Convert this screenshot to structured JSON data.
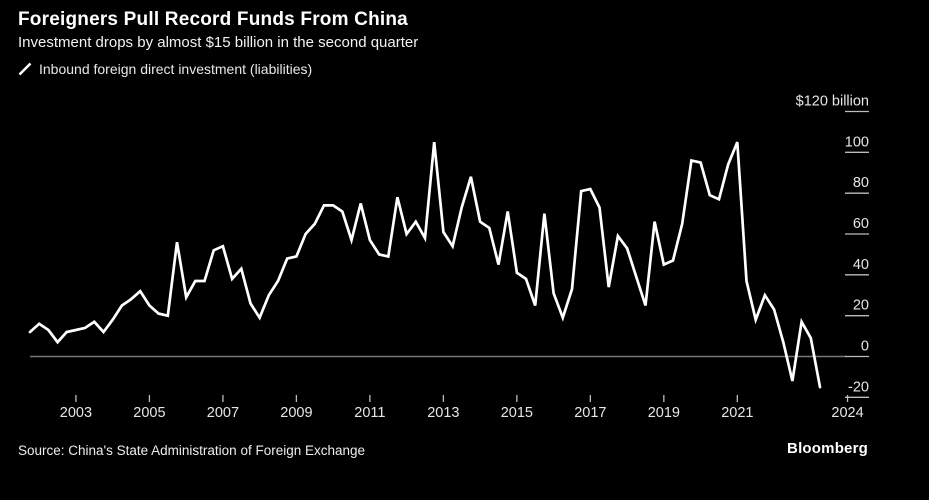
{
  "header": {
    "title": "Foreigners Pull Record Funds From China",
    "subtitle": "Investment drops by almost $15 billion in the second quarter"
  },
  "legend": {
    "icon": "line-slash-icon",
    "label": "Inbound foreign direct investment (liabilities)"
  },
  "footer": {
    "source": "Source: China's State Administration of Foreign Exchange",
    "brand": "Bloomberg"
  },
  "colors": {
    "background": "#000000",
    "series_line": "#ffffff",
    "zero_line": "#767676",
    "tick_mark": "#bdbdbd",
    "tick_label": "#e6e6e6"
  },
  "chart_data": {
    "type": "line",
    "series_name": "Inbound foreign direct investment (liabilities)",
    "unit": "USD billion",
    "frequency": "quarterly",
    "period_start": "2002 Q4",
    "period_end": "2024 Q2",
    "values": [
      12,
      16,
      13,
      7,
      12,
      13,
      14,
      17,
      12,
      18,
      25,
      28,
      32,
      25,
      21,
      20,
      56,
      29,
      37,
      37,
      52,
      54,
      38,
      43,
      26,
      19,
      30,
      37,
      48,
      49,
      60,
      65,
      74,
      74,
      71,
      57,
      75,
      57,
      50,
      49,
      78,
      60,
      66,
      58,
      105,
      61,
      54,
      73,
      88,
      66,
      63,
      45,
      71,
      41,
      38,
      25,
      70,
      31,
      19,
      33,
      81,
      82,
      73,
      34,
      59,
      53,
      39,
      25,
      66,
      45,
      47,
      65,
      96,
      95,
      79,
      77,
      94,
      105,
      37,
      18,
      30,
      23,
      7,
      -12,
      17,
      9,
      -15
    ],
    "y_ticks": [
      {
        "value": 120,
        "label": "$120 billion"
      },
      {
        "value": 100,
        "label": "100"
      },
      {
        "value": 80,
        "label": "80"
      },
      {
        "value": 60,
        "label": "60"
      },
      {
        "value": 40,
        "label": "40"
      },
      {
        "value": 20,
        "label": "20"
      },
      {
        "value": 0,
        "label": "0"
      },
      {
        "value": -20,
        "label": "-20"
      }
    ],
    "x_ticks": [
      "2003",
      "2005",
      "2007",
      "2009",
      "2011",
      "2013",
      "2015",
      "2017",
      "2019",
      "2021",
      "2024"
    ],
    "ylim": [
      -25,
      125
    ],
    "grid": "zero-line-only",
    "legend_position": "top-left",
    "title": "Foreigners Pull Record Funds From China",
    "subtitle": "Investment drops by almost $15 billion in the second quarter"
  }
}
